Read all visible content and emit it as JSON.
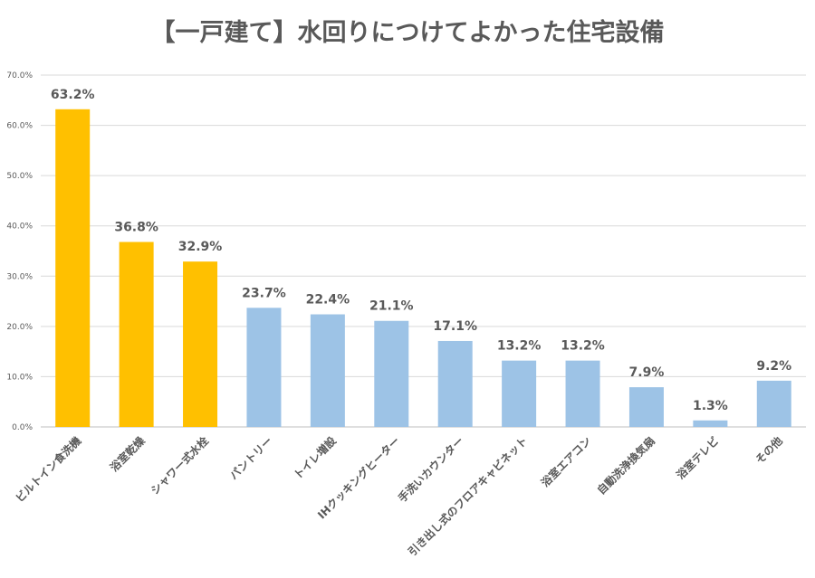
{
  "chart_data": {
    "type": "bar",
    "title": "【一戸建て】水回りにつけてよかった住宅設備",
    "xlabel": "",
    "ylabel": "",
    "ylim": [
      0,
      70
    ],
    "yticks": [
      "0.0%",
      "10.0%",
      "20.0%",
      "30.0%",
      "40.0%",
      "50.0%",
      "60.0%",
      "70.0%"
    ],
    "grid": true,
    "categories": [
      "ビルトイン食洗機",
      "浴室乾燥",
      "シャワー式水栓",
      "パントリー",
      "トイレ増設",
      "IHクッキングヒーター",
      "手洗いカウンター",
      "引き出し式のフロアキャビネット",
      "浴室エアコン",
      "自動洗浄換気扇",
      "浴室テレビ",
      "その他"
    ],
    "values": [
      63.2,
      36.8,
      32.9,
      23.7,
      22.4,
      21.1,
      17.1,
      13.2,
      13.2,
      7.9,
      1.3,
      9.2
    ],
    "labels": [
      "63.2%",
      "36.8%",
      "32.9%",
      "23.7%",
      "22.4%",
      "21.1%",
      "17.1%",
      "13.2%",
      "13.2%",
      "7.9%",
      "1.3%",
      "9.2%"
    ],
    "highlight_count": 3,
    "colors": {
      "highlight": "#FFC000",
      "normal": "#9DC3E6",
      "grid": "#D9D9D9",
      "text": "#595959"
    }
  }
}
